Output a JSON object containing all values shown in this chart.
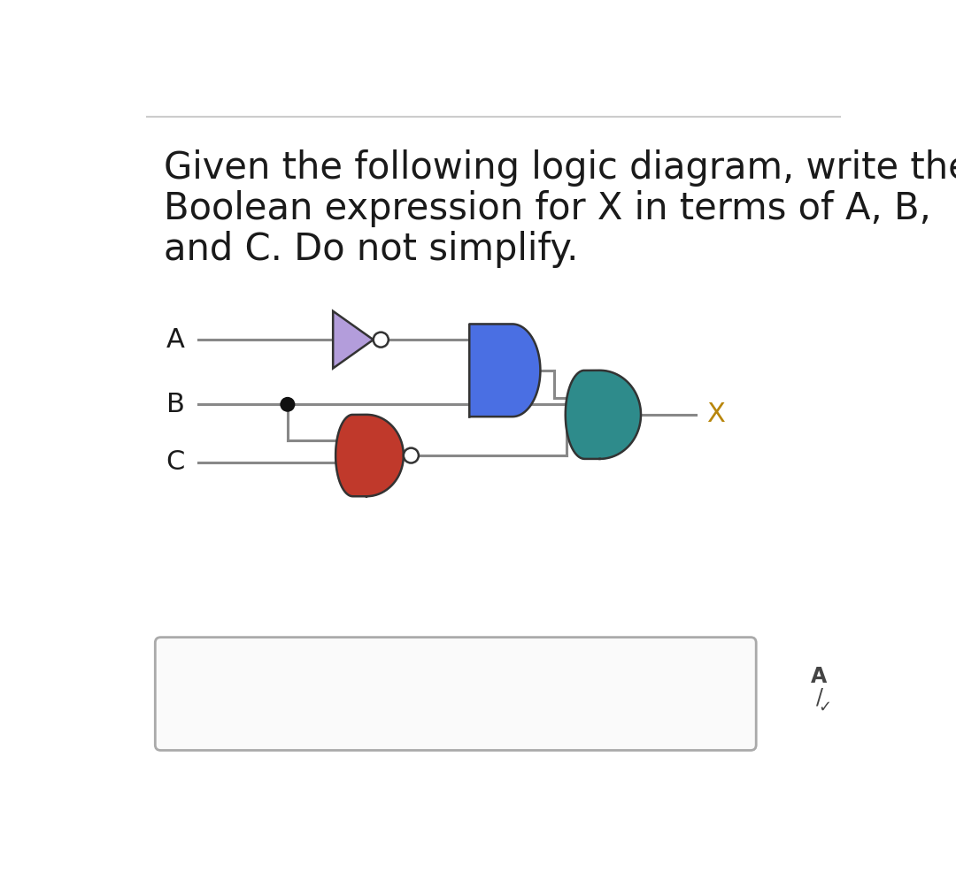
{
  "title_line1": "Given the following logic diagram, write the",
  "title_line2": "Boolean expression for X in terms of A, B,",
  "title_line3": "and C. Do not simplify.",
  "title_fontsize": 30,
  "title_color": "#1a1a1a",
  "bg_color": "#ffffff",
  "label_A": "A",
  "label_B": "B",
  "label_C": "C",
  "label_X": "X",
  "not_gate_color": "#b39ddb",
  "and_gate_color": "#4a6fe3",
  "nor_gate_color": "#c0392b",
  "or_gate_color": "#2e8b8b",
  "wire_color": "#888888",
  "bubble_color": "#ffffff",
  "bubble_edge": "#333333",
  "junction_color": "#111111",
  "label_fontsize": 22,
  "x_label_color": "#b8860b",
  "top_line_color": "#cccccc"
}
